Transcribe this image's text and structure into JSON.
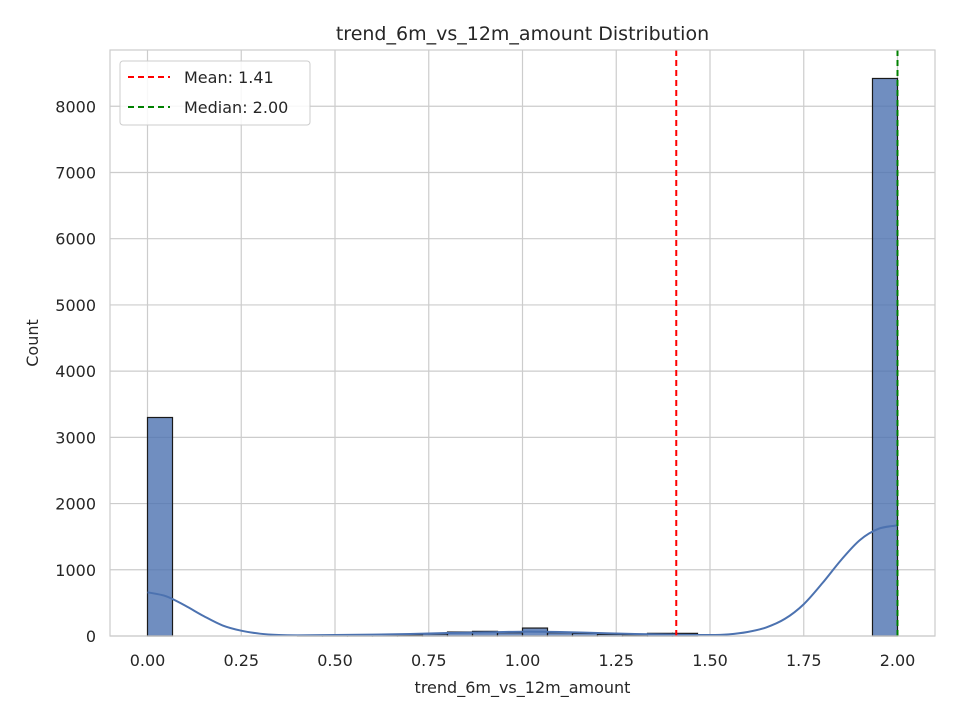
{
  "chart_data": {
    "type": "histogram",
    "title": "trend_6m_vs_12m_amount Distribution",
    "xlabel": "trend_6m_vs_12m_amount",
    "ylabel": "Count",
    "xlim": [
      -0.1,
      2.1
    ],
    "ylim": [
      0,
      8850
    ],
    "xticks": [
      "0.00",
      "0.25",
      "0.50",
      "0.75",
      "1.00",
      "1.25",
      "1.50",
      "1.75",
      "2.00"
    ],
    "yticks": [
      "0",
      "1000",
      "2000",
      "3000",
      "4000",
      "5000",
      "6000",
      "7000",
      "8000"
    ],
    "grid": true,
    "bar_color": "#4c72b0",
    "kde_color": "#4c72b0",
    "bin_width": 0.0667,
    "bins": [
      {
        "x0": 0.0,
        "count": 3300
      },
      {
        "x0": 0.0667,
        "count": 0
      },
      {
        "x0": 0.1333,
        "count": 0
      },
      {
        "x0": 0.2,
        "count": 0
      },
      {
        "x0": 0.2667,
        "count": 0
      },
      {
        "x0": 0.3333,
        "count": 0
      },
      {
        "x0": 0.4,
        "count": 10
      },
      {
        "x0": 0.4667,
        "count": 10
      },
      {
        "x0": 0.5333,
        "count": 10
      },
      {
        "x0": 0.6,
        "count": 10
      },
      {
        "x0": 0.6667,
        "count": 15
      },
      {
        "x0": 0.7333,
        "count": 30
      },
      {
        "x0": 0.8,
        "count": 60
      },
      {
        "x0": 0.8667,
        "count": 70
      },
      {
        "x0": 0.9333,
        "count": 50
      },
      {
        "x0": 1.0,
        "count": 120
      },
      {
        "x0": 1.0667,
        "count": 50
      },
      {
        "x0": 1.1333,
        "count": 40
      },
      {
        "x0": 1.2,
        "count": 25
      },
      {
        "x0": 1.2667,
        "count": 20
      },
      {
        "x0": 1.3333,
        "count": 40
      },
      {
        "x0": 1.4,
        "count": 40
      },
      {
        "x0": 1.4667,
        "count": 0
      },
      {
        "x0": 1.5333,
        "count": 0
      },
      {
        "x0": 1.6,
        "count": 0
      },
      {
        "x0": 1.6667,
        "count": 0
      },
      {
        "x0": 1.7333,
        "count": 0
      },
      {
        "x0": 1.8,
        "count": 0
      },
      {
        "x0": 1.8667,
        "count": 0
      },
      {
        "x0": 1.9333,
        "count": 8420
      }
    ],
    "kde": {
      "x": [
        0.0,
        0.05,
        0.1,
        0.15,
        0.2,
        0.25,
        0.3,
        0.35,
        0.4,
        0.5,
        0.6,
        0.7,
        0.8,
        0.9,
        1.0,
        1.1,
        1.2,
        1.3,
        1.4,
        1.5,
        1.55,
        1.6,
        1.65,
        1.7,
        1.75,
        1.8,
        1.85,
        1.9,
        1.95,
        2.0
      ],
      "y": [
        660,
        600,
        460,
        300,
        160,
        80,
        35,
        15,
        10,
        15,
        20,
        30,
        45,
        55,
        65,
        60,
        45,
        30,
        20,
        15,
        25,
        60,
        130,
        260,
        480,
        800,
        1150,
        1450,
        1620,
        1670
      ]
    },
    "vlines": [
      {
        "label": "Mean: 1.41",
        "x": 1.41,
        "color": "#ff0000",
        "style": "dashed"
      },
      {
        "label": "Median: 2.00",
        "x": 2.0,
        "color": "#008000",
        "style": "dashed"
      }
    ],
    "legend_position": "top-left"
  }
}
